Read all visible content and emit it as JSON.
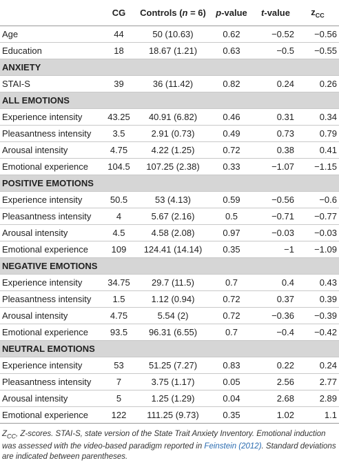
{
  "table": {
    "header": [
      [],
      [
        {
          "text": "CG"
        }
      ],
      [
        {
          "text": "Controls ("
        },
        {
          "text": "n",
          "italic": true
        },
        {
          "text": " = 6)"
        }
      ],
      [
        {
          "text": "p",
          "italic": true
        },
        {
          "text": "-value"
        }
      ],
      [
        {
          "text": "t",
          "italic": true
        },
        {
          "text": "-value"
        }
      ],
      [
        {
          "text": "z"
        },
        {
          "text": "CC",
          "sub": true
        }
      ]
    ],
    "sections": [
      {
        "rows": [
          [
            "Age",
            "44",
            "50 (10.63)",
            "0.62",
            "−0.52",
            "−0.56"
          ],
          [
            "Education",
            "18",
            "18.67 (1.21)",
            "0.63",
            "−0.5",
            "−0.55"
          ]
        ]
      },
      {
        "title": "ANXIETY",
        "rows": [
          [
            "STAI-S",
            "39",
            "36 (11.42)",
            "0.82",
            "0.24",
            "0.26"
          ]
        ]
      },
      {
        "title": "ALL EMOTIONS",
        "rows": [
          [
            "Experience intensity",
            "43.25",
            "40.91 (6.82)",
            "0.46",
            "0.31",
            "0.34"
          ],
          [
            "Pleasantness intensity",
            "3.5",
            "2.91 (0.73)",
            "0.49",
            "0.73",
            "0.79"
          ],
          [
            "Arousal intensity",
            "4.75",
            "4.22 (1.25)",
            "0.72",
            "0.38",
            "0.41"
          ],
          [
            "Emotional experience",
            "104.5",
            "107.25 (2.38)",
            "0.33",
            "−1.07",
            "−1.15"
          ]
        ]
      },
      {
        "title": "POSITIVE EMOTIONS",
        "rows": [
          [
            "Experience intensity",
            "50.5",
            "53 (4.13)",
            "0.59",
            "−0.56",
            "−0.6"
          ],
          [
            "Pleasantness intensity",
            "4",
            "5.67 (2.16)",
            "0.5",
            "−0.71",
            "−0.77"
          ],
          [
            "Arousal intensity",
            "4.5",
            "4.58 (2.08)",
            "0.97",
            "−0.03",
            "−0.03"
          ],
          [
            "Emotional experience",
            "109",
            "124.41 (14.14)",
            "0.35",
            "−1",
            "−1.09"
          ]
        ]
      },
      {
        "title": "NEGATIVE EMOTIONS",
        "rows": [
          [
            "Experience intensity",
            "34.75",
            "29.7 (11.5)",
            "0.7",
            "0.4",
            "0.43"
          ],
          [
            "Pleasantness intensity",
            "1.5",
            "1.12 (0.94)",
            "0.72",
            "0.37",
            "0.39"
          ],
          [
            "Arousal intensity",
            "4.75",
            "5.54 (2)",
            "0.72",
            "−0.36",
            "−0.39"
          ],
          [
            "Emotional experience",
            "93.5",
            "96.31 (6.55)",
            "0.7",
            "−0.4",
            "−0.42"
          ]
        ]
      },
      {
        "title": "NEUTRAL EMOTIONS",
        "rows": [
          [
            "Experience intensity",
            "53",
            "51.25 (7.27)",
            "0.83",
            "0.22",
            "0.24"
          ],
          [
            "Pleasantness intensity",
            "7",
            "3.75 (1.17)",
            "0.05",
            "2.56",
            "2.77"
          ],
          [
            "Arousal intensity",
            "5",
            "1.25 (1.29)",
            "0.04",
            "2.68",
            "2.89"
          ],
          [
            "Emotional experience",
            "122",
            "111.25 (9.73)",
            "0.35",
            "1.02",
            "1.1"
          ]
        ]
      }
    ],
    "footnote": [
      {
        "text": "Z"
      },
      {
        "text": "CC",
        "sub": true
      },
      {
        "text": ", Z-scores. STAI-S, state version of the State Trait Anxiety Inventory. Emotional induction was assessed with the video-based paradigm reported in "
      },
      {
        "text": "Feinstein (2012)",
        "link": true
      },
      {
        "text": ". Standard deviations are indicated between parentheses."
      }
    ]
  }
}
